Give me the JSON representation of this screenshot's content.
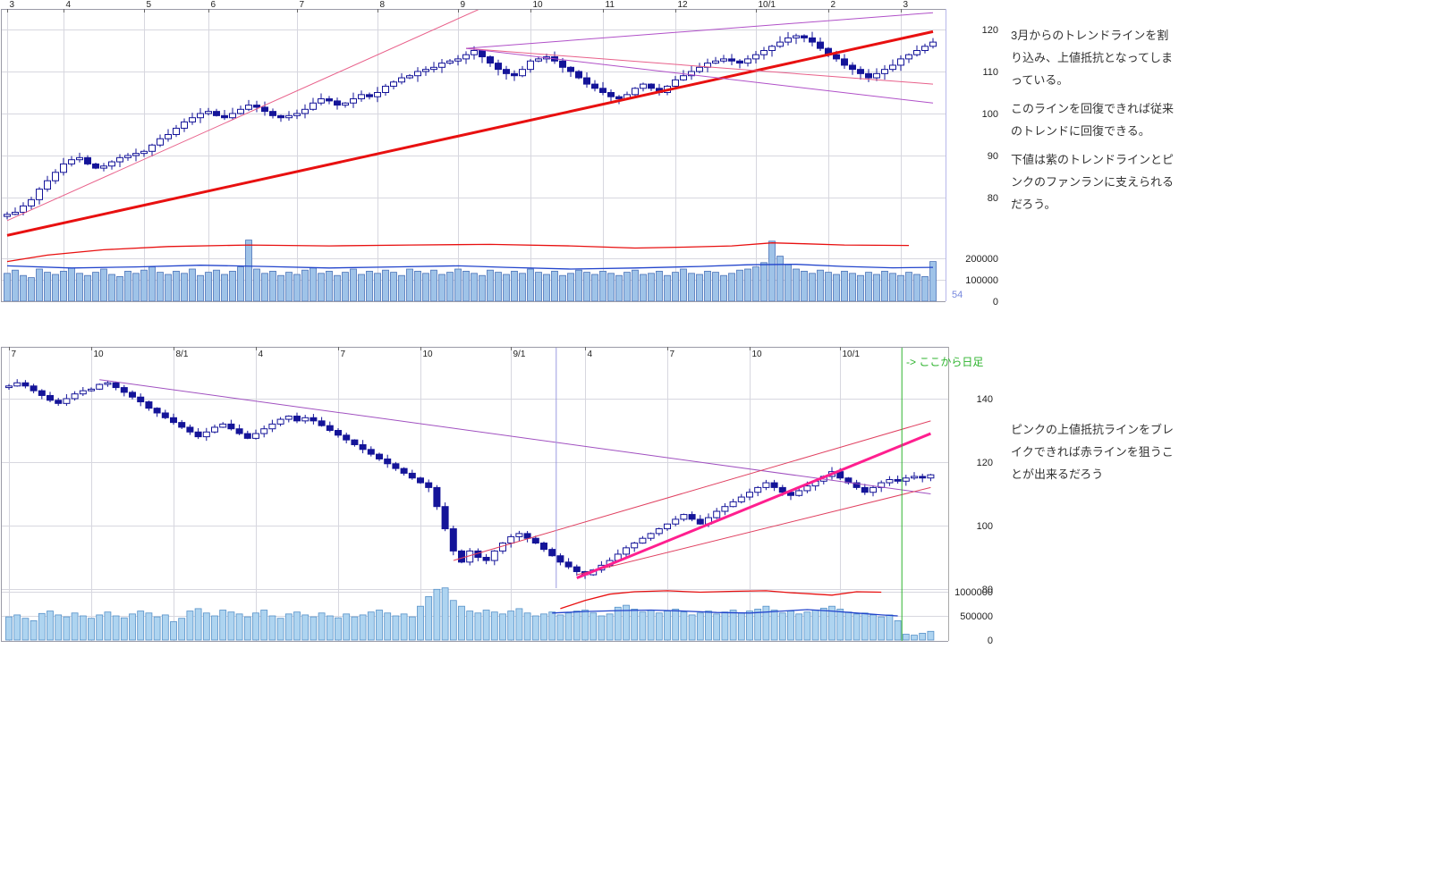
{
  "annotations": {
    "weekly_note": [
      "3月からのトレンドラインを割り込み、上値抵抗となってしまっている。",
      "このラインを回復できれば従来のトレンドに回復できる。",
      "下値は紫のトレンドラインとピンクのファンランに支えられるだろう。"
    ],
    "daily_note": "ピンクの上値抵抗ラインをブレイクできれば赤ラインを狙うことが出来るだろう",
    "daily_start_marker": "-> ここから日足",
    "bar_count": "54"
  },
  "chart_data": [
    {
      "id": "weekly",
      "type": "candlestick",
      "x_tick_labels": [
        "3",
        "4",
        "5",
        "6",
        "7",
        "8",
        "9",
        "10",
        "11",
        "12",
        "10/1",
        "2",
        "3"
      ],
      "x_tick_indices": [
        0,
        7,
        17,
        25,
        36,
        46,
        56,
        65,
        74,
        83,
        93,
        102,
        111
      ],
      "price_ticks": [
        120,
        110,
        100,
        90,
        80
      ],
      "volume_ticks": [
        200000,
        100000,
        0
      ],
      "closes": [
        76,
        76.5,
        78,
        79.5,
        82,
        84,
        86,
        88,
        89,
        89.5,
        88,
        87,
        87.5,
        88.5,
        89.5,
        90,
        90.5,
        91,
        92.5,
        94,
        95,
        96.5,
        98,
        99,
        100,
        100.5,
        99.5,
        99,
        100,
        101,
        102,
        101.5,
        100.5,
        99.5,
        99,
        99.5,
        100,
        101,
        102.5,
        103.5,
        103,
        102,
        102.5,
        103.5,
        104.5,
        104,
        105,
        106.5,
        107.5,
        108.5,
        109,
        110,
        110.5,
        111,
        112,
        112.5,
        113,
        114,
        115,
        113.5,
        112,
        110.5,
        109.5,
        109,
        110.5,
        112.5,
        113,
        113.5,
        112.5,
        111,
        110,
        108.5,
        107,
        106,
        105,
        104,
        103.5,
        104.5,
        106,
        107,
        106,
        105,
        106.5,
        108,
        109,
        110,
        111,
        112,
        112.5,
        113,
        112.5,
        112,
        113,
        114,
        115,
        116,
        117,
        118,
        118.5,
        118,
        117,
        115.5,
        114,
        113,
        111.5,
        110.5,
        109.5,
        108.5,
        109.5,
        110.5,
        111.5,
        113,
        114,
        115,
        116,
        117
      ],
      "volumes": [
        130000,
        145000,
        120000,
        110000,
        150000,
        135000,
        125000,
        140000,
        155000,
        130000,
        120000,
        135000,
        150000,
        125000,
        115000,
        140000,
        130000,
        145000,
        160000,
        135000,
        125000,
        140000,
        130000,
        150000,
        120000,
        135000,
        145000,
        125000,
        140000,
        160000,
        285000,
        150000,
        130000,
        140000,
        120000,
        135000,
        125000,
        145000,
        155000,
        130000,
        140000,
        120000,
        135000,
        150000,
        125000,
        140000,
        130000,
        145000,
        135000,
        120000,
        150000,
        140000,
        130000,
        145000,
        125000,
        135000,
        150000,
        140000,
        130000,
        120000,
        145000,
        135000,
        125000,
        140000,
        130000,
        150000,
        135000,
        125000,
        140000,
        120000,
        130000,
        145000,
        135000,
        125000,
        140000,
        130000,
        120000,
        135000,
        145000,
        125000,
        130000,
        140000,
        120000,
        135000,
        150000,
        130000,
        125000,
        140000,
        135000,
        120000,
        130000,
        145000,
        150000,
        160000,
        180000,
        280000,
        210000,
        170000,
        150000,
        140000,
        130000,
        145000,
        135000,
        125000,
        140000,
        130000,
        120000,
        135000,
        125000,
        140000,
        130000,
        120000,
        135000,
        125000,
        115000,
        185000
      ],
      "volume_ma_red": [
        [
          0,
          185000
        ],
        [
          5,
          215000
        ],
        [
          12,
          240000
        ],
        [
          20,
          255000
        ],
        [
          30,
          262000
        ],
        [
          40,
          258000
        ],
        [
          50,
          262000
        ],
        [
          60,
          265000
        ],
        [
          70,
          258000
        ],
        [
          78,
          248000
        ],
        [
          84,
          252000
        ],
        [
          90,
          258000
        ],
        [
          95,
          272000
        ],
        [
          99,
          268000
        ],
        [
          104,
          262000
        ],
        [
          112,
          260000
        ]
      ],
      "volume_ma_blue": [
        [
          0,
          165000
        ],
        [
          8,
          155000
        ],
        [
          16,
          160000
        ],
        [
          24,
          168000
        ],
        [
          32,
          162000
        ],
        [
          40,
          155000
        ],
        [
          48,
          160000
        ],
        [
          56,
          165000
        ],
        [
          62,
          158000
        ],
        [
          70,
          150000
        ],
        [
          78,
          155000
        ],
        [
          86,
          162000
        ],
        [
          92,
          170000
        ],
        [
          98,
          172000
        ],
        [
          104,
          162000
        ],
        [
          110,
          156000
        ],
        [
          115,
          158000
        ]
      ],
      "trend_lines": [
        {
          "name": "thick-red-trendline",
          "color": "#e81010",
          "width": 3,
          "points": [
            [
              0,
              71
            ],
            [
              115,
              119.5
            ]
          ]
        },
        {
          "name": "pink-fan-line",
          "color": "#e8608a",
          "width": 1,
          "points": [
            [
              0,
              74.5
            ],
            [
              60,
              126
            ]
          ]
        },
        {
          "name": "purple-ascending-line",
          "color": "#b050c8",
          "width": 1,
          "points": [
            [
              57,
              115.5
            ],
            [
              115,
              124
            ]
          ]
        },
        {
          "name": "pink-descending-line",
          "color": "#e8608a",
          "width": 1,
          "points": [
            [
              57,
              115.5
            ],
            [
              115,
              107
            ]
          ]
        },
        {
          "name": "purple-descending-line",
          "color": "#b050c8",
          "width": 1,
          "points": [
            [
              57,
              115.5
            ],
            [
              115,
              102.5
            ]
          ]
        }
      ],
      "vertical_lines": [],
      "colors": {
        "candle": "#141499",
        "volume_fill": "#9fc3e8",
        "volume_stroke": "#4a72b8",
        "ma_red": "#e81010",
        "ma_blue": "#2244cc"
      }
    },
    {
      "id": "daily",
      "type": "candlestick",
      "x_tick_labels": [
        "7",
        "10",
        "8/1",
        "4",
        "7",
        "10",
        "9/1",
        "4",
        "7",
        "10",
        "10/1"
      ],
      "x_tick_indices": [
        0,
        10,
        20,
        30,
        40,
        50,
        61,
        70,
        80,
        90,
        101
      ],
      "price_ticks": [
        140,
        120,
        100,
        80
      ],
      "volume_ticks": [
        1000000,
        500000,
        0
      ],
      "closes": [
        144,
        145,
        144,
        142.5,
        141,
        139.5,
        138.5,
        140,
        141.5,
        142.5,
        143,
        144.5,
        145,
        143.5,
        142,
        140.5,
        139,
        137,
        135.5,
        134,
        132.5,
        131,
        129.5,
        128,
        129.5,
        131,
        132,
        130.5,
        129,
        127.5,
        129,
        130.5,
        132,
        133.5,
        134.5,
        133,
        134,
        133,
        131.5,
        130,
        128.5,
        127,
        125.5,
        124,
        122.5,
        121,
        119.5,
        118,
        116.5,
        115,
        113.5,
        112,
        106,
        99,
        92,
        88.5,
        92,
        90,
        89,
        92,
        94.5,
        96.5,
        97.5,
        96,
        94.5,
        92.5,
        90.5,
        88.5,
        87,
        85.5,
        84.5,
        86,
        87.5,
        89,
        91,
        93,
        94.5,
        96,
        97.5,
        99,
        100.5,
        102,
        103.5,
        102,
        100.5,
        102.5,
        104.5,
        106,
        107.5,
        109,
        110.5,
        112,
        113.5,
        112,
        110.5,
        109.5,
        111,
        112.5,
        114,
        115.5,
        117,
        115,
        113.5,
        112,
        110.5,
        112,
        113.5,
        114.5,
        114,
        115,
        115.5,
        115,
        116
      ],
      "volumes": [
        480000,
        520000,
        450000,
        400000,
        550000,
        600000,
        520000,
        480000,
        560000,
        500000,
        450000,
        520000,
        580000,
        500000,
        460000,
        540000,
        600000,
        560000,
        480000,
        520000,
        380000,
        450000,
        600000,
        650000,
        560000,
        500000,
        620000,
        580000,
        540000,
        480000,
        560000,
        620000,
        500000,
        450000,
        540000,
        580000,
        520000,
        480000,
        560000,
        500000,
        460000,
        540000,
        480000,
        520000,
        580000,
        620000,
        560000,
        500000,
        540000,
        480000,
        700000,
        900000,
        1050000,
        1080000,
        820000,
        700000,
        600000,
        560000,
        620000,
        580000,
        540000,
        600000,
        650000,
        560000,
        500000,
        540000,
        580000,
        520000,
        560000,
        600000,
        620000,
        560000,
        500000,
        540000,
        680000,
        720000,
        640000,
        580000,
        620000,
        560000,
        600000,
        640000,
        580000,
        520000,
        560000,
        600000,
        540000,
        580000,
        620000,
        560000,
        600000,
        640000,
        700000,
        620000,
        560000,
        600000,
        540000,
        580000,
        620000,
        660000,
        700000,
        640000,
        580000,
        540000,
        560000,
        520000,
        480000,
        520000,
        400000,
        120000,
        100000,
        140000,
        180000
      ],
      "volume_ma_red": [
        [
          67,
          650000
        ],
        [
          70,
          820000
        ],
        [
          73,
          950000
        ],
        [
          76,
          1000000
        ],
        [
          80,
          1020000
        ],
        [
          84,
          990000
        ],
        [
          88,
          1010000
        ],
        [
          92,
          1020000
        ],
        [
          95,
          980000
        ],
        [
          98,
          950000
        ],
        [
          100,
          930000
        ],
        [
          103,
          1000000
        ],
        [
          106,
          990000
        ]
      ],
      "volume_ma_blue": [
        [
          66,
          560000
        ],
        [
          70,
          590000
        ],
        [
          74,
          610000
        ],
        [
          78,
          620000
        ],
        [
          82,
          600000
        ],
        [
          86,
          570000
        ],
        [
          90,
          560000
        ],
        [
          94,
          600000
        ],
        [
          97,
          630000
        ],
        [
          100,
          600000
        ],
        [
          103,
          560000
        ],
        [
          106,
          520000
        ],
        [
          108,
          500000
        ]
      ],
      "trend_lines": [
        {
          "name": "purple-descending-trendline",
          "color": "#a050c0",
          "width": 1,
          "points": [
            [
              11,
              146
            ],
            [
              112,
              110
            ]
          ]
        },
        {
          "name": "red-channel-upper",
          "color": "#e04060",
          "width": 1,
          "points": [
            [
              54,
              89
            ],
            [
              112,
              133
            ]
          ]
        },
        {
          "name": "red-channel-lower",
          "color": "#e04060",
          "width": 1,
          "points": [
            [
              69,
              84.5
            ],
            [
              112,
              112
            ]
          ]
        },
        {
          "name": "thick-pink-resistance",
          "color": "#ff1f8f",
          "width": 3,
          "points": [
            [
              69,
              83.5
            ],
            [
              112,
              129
            ]
          ]
        }
      ],
      "vertical_lines": [
        {
          "name": "data-boundary-line",
          "color": "#9a9ae0",
          "x_index": 66.5,
          "span": "price"
        },
        {
          "name": "daily-start-line",
          "color": "#2db32d",
          "x_index": 108.5,
          "span": "full"
        }
      ],
      "colors": {
        "candle": "#141499",
        "volume_fill": "#aed4f0",
        "volume_stroke": "#5590c8",
        "ma_red": "#e81010",
        "ma_blue": "#2244cc"
      }
    }
  ]
}
